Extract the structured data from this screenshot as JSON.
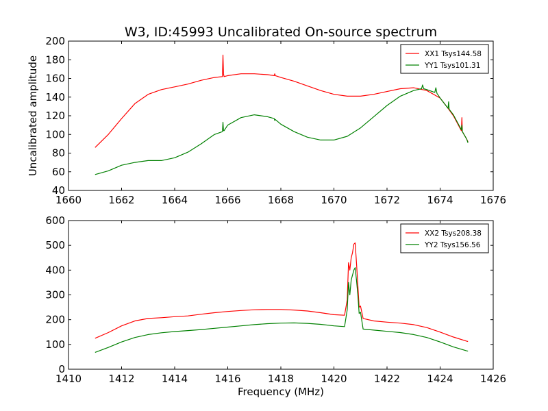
{
  "figure": {
    "title": "W3, ID:45993 Uncalibrated On-source spectrum"
  },
  "chart_data": [
    {
      "type": "line",
      "title": "W3, ID:45993 Uncalibrated On-source spectrum",
      "xlabel": "",
      "ylabel": "Uncalibrated amplitude",
      "xlim": [
        1660,
        1676
      ],
      "ylim": [
        40,
        200
      ],
      "xticks": [
        1660,
        1662,
        1664,
        1666,
        1668,
        1670,
        1672,
        1674,
        1676
      ],
      "yticks": [
        40,
        60,
        80,
        100,
        120,
        140,
        160,
        180,
        200
      ],
      "grid": false,
      "legend": "top-right",
      "series": [
        {
          "name": "XX1 Tsys144.58",
          "color": "#ff0000",
          "x": [
            1661.0,
            1661.5,
            1662.0,
            1662.5,
            1663.0,
            1663.5,
            1664.0,
            1664.5,
            1665.0,
            1665.5,
            1665.8,
            1665.82,
            1665.84,
            1665.86,
            1666.0,
            1666.5,
            1667.0,
            1667.5,
            1667.75,
            1667.77,
            1667.79,
            1668.0,
            1668.5,
            1669.0,
            1669.5,
            1670.0,
            1670.5,
            1671.0,
            1671.5,
            1672.0,
            1672.5,
            1673.0,
            1673.5,
            1674.0,
            1674.3,
            1674.5,
            1674.8,
            1674.82,
            1674.84,
            1675.0,
            1675.05
          ],
          "y": [
            86,
            100,
            117,
            133,
            143,
            148,
            151,
            154,
            158,
            161,
            162,
            185,
            165,
            162,
            163,
            165,
            165,
            164,
            163,
            165,
            163,
            161,
            157,
            152,
            147,
            143,
            141,
            141,
            143,
            146,
            149,
            150,
            147,
            139,
            128,
            120,
            104,
            118,
            103,
            95,
            92
          ]
        },
        {
          "name": "YY1 Tsys101.31",
          "color": "#008000",
          "x": [
            1661.0,
            1661.5,
            1662.0,
            1662.5,
            1663.0,
            1663.5,
            1664.0,
            1664.5,
            1665.0,
            1665.5,
            1665.8,
            1665.82,
            1665.84,
            1665.86,
            1666.0,
            1666.5,
            1667.0,
            1667.5,
            1667.75,
            1667.77,
            1667.79,
            1668.0,
            1668.5,
            1669.0,
            1669.5,
            1670.0,
            1670.5,
            1671.0,
            1671.5,
            1672.0,
            1672.5,
            1673.0,
            1673.3,
            1673.34,
            1673.38,
            1673.5,
            1673.8,
            1673.84,
            1673.88,
            1674.0,
            1674.3,
            1674.32,
            1674.34,
            1674.5,
            1674.8,
            1674.82,
            1674.84,
            1675.0,
            1675.05
          ],
          "y": [
            57,
            61,
            67,
            70,
            72,
            72,
            75,
            81,
            90,
            100,
            103,
            113,
            104,
            104,
            110,
            118,
            121,
            119,
            117,
            115,
            116,
            111,
            103,
            97,
            94,
            94,
            98,
            107,
            119,
            131,
            141,
            147,
            149,
            153,
            149,
            148,
            145,
            150,
            144,
            139,
            128,
            135,
            127,
            121,
            105,
            110,
            103,
            95,
            91
          ]
        }
      ]
    },
    {
      "type": "line",
      "title": "",
      "xlabel": "Frequency (MHz)",
      "ylabel": "",
      "xlim": [
        1410,
        1426
      ],
      "ylim": [
        0,
        600
      ],
      "xticks": [
        1410,
        1412,
        1414,
        1416,
        1418,
        1420,
        1422,
        1424,
        1426
      ],
      "yticks": [
        0,
        100,
        200,
        300,
        400,
        500,
        600
      ],
      "grid": false,
      "legend": "top-right",
      "series": [
        {
          "name": "XX2 Tsys208.38",
          "color": "#ff0000",
          "x": [
            1411.0,
            1411.5,
            1412.0,
            1412.5,
            1413.0,
            1413.5,
            1414.0,
            1414.5,
            1415.0,
            1415.5,
            1416.0,
            1416.5,
            1417.0,
            1417.5,
            1418.0,
            1418.5,
            1419.0,
            1419.5,
            1420.0,
            1420.4,
            1420.5,
            1420.55,
            1420.6,
            1420.65,
            1420.7,
            1420.75,
            1420.8,
            1420.85,
            1420.9,
            1420.95,
            1421.0,
            1421.1,
            1421.5,
            1422.0,
            1422.5,
            1423.0,
            1423.5,
            1424.0,
            1424.5,
            1425.0,
            1425.05
          ],
          "y": [
            125,
            148,
            175,
            195,
            205,
            208,
            212,
            215,
            222,
            228,
            233,
            237,
            240,
            241,
            241,
            239,
            235,
            228,
            220,
            218,
            280,
            430,
            400,
            450,
            470,
            505,
            510,
            430,
            340,
            250,
            255,
            205,
            195,
            190,
            186,
            180,
            168,
            150,
            130,
            113,
            112
          ]
        },
        {
          "name": "YY2 Tsys156.56",
          "color": "#008000",
          "x": [
            1411.0,
            1411.5,
            1412.0,
            1412.5,
            1413.0,
            1413.5,
            1414.0,
            1414.5,
            1415.0,
            1415.5,
            1416.0,
            1416.5,
            1417.0,
            1417.5,
            1418.0,
            1418.5,
            1419.0,
            1419.5,
            1420.0,
            1420.4,
            1420.5,
            1420.55,
            1420.6,
            1420.65,
            1420.7,
            1420.75,
            1420.8,
            1420.85,
            1420.9,
            1420.95,
            1421.0,
            1421.1,
            1421.5,
            1422.0,
            1422.5,
            1423.0,
            1423.5,
            1424.0,
            1424.5,
            1425.0,
            1425.05
          ],
          "y": [
            68,
            88,
            110,
            128,
            140,
            147,
            152,
            156,
            160,
            165,
            170,
            175,
            180,
            184,
            186,
            187,
            185,
            181,
            175,
            172,
            240,
            350,
            300,
            360,
            380,
            400,
            410,
            360,
            300,
            225,
            230,
            162,
            158,
            153,
            148,
            140,
            128,
            110,
            90,
            74,
            73
          ]
        }
      ]
    }
  ]
}
